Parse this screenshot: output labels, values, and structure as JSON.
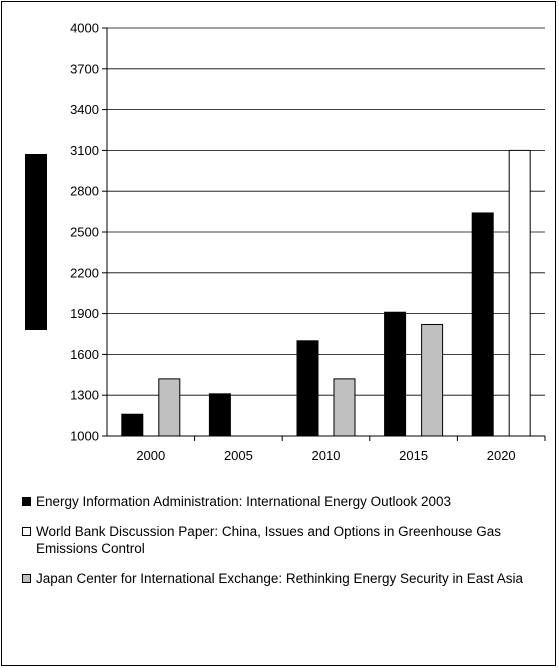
{
  "chart_data": {
    "type": "bar",
    "title": "",
    "xlabel": "",
    "ylabel": "",
    "categories": [
      "2000",
      "2005",
      "2010",
      "2015",
      "2020"
    ],
    "ylim": [
      1000,
      4000
    ],
    "yticks": [
      1000,
      1300,
      1600,
      1900,
      2200,
      2500,
      2800,
      3100,
      3400,
      3700,
      4000
    ],
    "grid": true,
    "legend_position": "bottom",
    "series": [
      {
        "name": "Energy Information Administration: International Energy Outlook 2003",
        "color": "#000000",
        "values": [
          1160,
          1310,
          1700,
          1910,
          2640
        ]
      },
      {
        "name": "World Bank Discussion Paper: China, Issues and Options in Greenhouse Gas Emissions Control",
        "color": "#ffffff",
        "values": [
          null,
          null,
          null,
          null,
          3100
        ]
      },
      {
        "name": "Japan Center for International Exchange: Rethinking Energy Security in East Asia",
        "color": "#c0c0c0",
        "values": [
          1420,
          null,
          1420,
          1820,
          null
        ]
      }
    ],
    "bar_pairs": [
      [
        0,
        2
      ],
      [
        0,
        2
      ],
      [
        0,
        2
      ],
      [
        0,
        2
      ],
      [
        0,
        1
      ]
    ]
  }
}
